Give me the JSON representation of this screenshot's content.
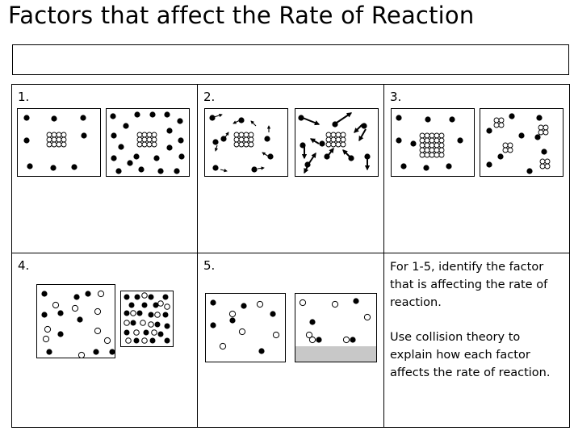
{
  "title": "Factors that affect the Rate of Reaction",
  "answer_box": "",
  "cells": {
    "c1": {
      "number": "1."
    },
    "c2": {
      "number": "2."
    },
    "c3": {
      "number": "3."
    },
    "c4": {
      "number": "4."
    },
    "c5": {
      "number": "5."
    }
  },
  "instructions": {
    "p1": "For 1-5, identify the factor that is affecting the rate of reaction.",
    "p2": "Use collision theory to explain how each factor affects the rate of reaction."
  },
  "colors": {
    "ink": "#000000",
    "surface": "#c8c8c8",
    "background": "#ffffff"
  }
}
